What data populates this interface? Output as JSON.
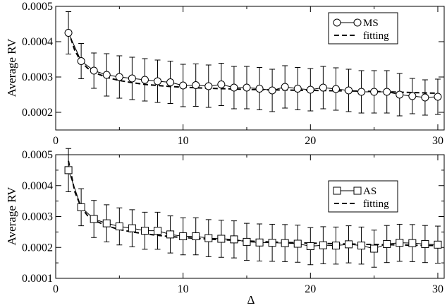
{
  "xlabel": "Δ",
  "colors": {
    "ink": "#000000",
    "background": "#ffffff"
  },
  "chart_data": [
    {
      "type": "line",
      "panel": "top",
      "ylabel": "Average RV",
      "xlim": [
        0,
        30.5
      ],
      "ylim": [
        0.00015,
        0.0005
      ],
      "x_ticks": [
        0,
        10,
        20,
        30
      ],
      "x_tick_labels": [
        "0",
        "10",
        "20",
        "30"
      ],
      "y_ticks": [
        0.0002,
        0.0003,
        0.0004,
        0.0005
      ],
      "y_tick_labels": [
        "0.0002",
        "0.0003",
        "0.0004",
        "0.0005"
      ],
      "legend_position": "top-right",
      "series": [
        {
          "name": "MS",
          "marker": "circle",
          "line": "solid",
          "x": [
            1,
            2,
            3,
            4,
            5,
            6,
            7,
            8,
            9,
            10,
            11,
            12,
            13,
            14,
            15,
            16,
            17,
            18,
            19,
            20,
            21,
            22,
            23,
            24,
            25,
            26,
            27,
            28,
            29,
            30
          ],
          "values": [
            0.000425,
            0.000345,
            0.000318,
            0.000306,
            0.0003,
            0.000296,
            0.000292,
            0.000288,
            0.000285,
            0.000276,
            0.000277,
            0.000274,
            0.000279,
            0.00027,
            0.00027,
            0.000267,
            0.000262,
            0.000272,
            0.000267,
            0.000264,
            0.00027,
            0.000266,
            0.000262,
            0.000258,
            0.000258,
            0.000258,
            0.00025,
            0.000246,
            0.000242,
            0.000244
          ],
          "error": [
            6e-05,
            5e-05,
            5e-05,
            6e-05,
            6e-05,
            6e-05,
            6e-05,
            6e-05,
            6e-05,
            6e-05,
            6e-05,
            6e-05,
            6e-05,
            6e-05,
            6e-05,
            6e-05,
            6e-05,
            6e-05,
            6e-05,
            6e-05,
            6e-05,
            6e-05,
            6e-05,
            6e-05,
            6e-05,
            6e-05,
            6e-05,
            5e-05,
            5e-05,
            5e-05
          ]
        },
        {
          "name": "fitting",
          "line": "dashed",
          "x": [
            1,
            1.5,
            2,
            2.5,
            3,
            4,
            5,
            6,
            7,
            8,
            9,
            10,
            12,
            14,
            16,
            18,
            20,
            22,
            24,
            26,
            28,
            30
          ],
          "values": [
            0.00043,
            0.000375,
            0.000343,
            0.000325,
            0.000313,
            0.000299,
            0.00029,
            0.000284,
            0.000279,
            0.000276,
            0.000273,
            0.000271,
            0.000268,
            0.000266,
            0.000264,
            0.000263,
            0.000262,
            0.000261,
            0.00026,
            0.000258,
            0.000256,
            0.000254
          ]
        }
      ]
    },
    {
      "type": "line",
      "panel": "bottom",
      "ylabel": "Average RV",
      "xlabel": "Δ",
      "xlim": [
        0,
        30.5
      ],
      "ylim": [
        0.0001,
        0.0005
      ],
      "x_ticks": [
        0,
        10,
        20,
        30
      ],
      "x_tick_labels": [
        "0",
        "10",
        "20",
        "30"
      ],
      "y_ticks": [
        0.0001,
        0.0002,
        0.0003,
        0.0004,
        0.0005
      ],
      "y_tick_labels": [
        "0.0001",
        "0.0002",
        "0.0003",
        "0.0004",
        "0.0005"
      ],
      "legend_position": "top-right",
      "series": [
        {
          "name": "AS",
          "marker": "square",
          "line": "solid",
          "x": [
            1,
            2,
            3,
            4,
            5,
            6,
            7,
            8,
            9,
            10,
            11,
            12,
            13,
            14,
            15,
            16,
            17,
            18,
            19,
            20,
            21,
            22,
            23,
            24,
            25,
            26,
            27,
            28,
            29,
            30
          ],
          "values": [
            0.00045,
            0.00033,
            0.000292,
            0.000278,
            0.000268,
            0.000262,
            0.000254,
            0.000254,
            0.000242,
            0.000236,
            0.000236,
            0.00023,
            0.000228,
            0.000226,
            0.000218,
            0.000216,
            0.000215,
            0.000214,
            0.000212,
            0.000204,
            0.000207,
            0.000206,
            0.00021,
            0.000206,
            0.000196,
            0.000211,
            0.000215,
            0.000214,
            0.000211,
            0.000209
          ],
          "error": [
            7e-05,
            6e-05,
            6e-05,
            6e-05,
            6e-05,
            6e-05,
            6e-05,
            6e-05,
            6e-05,
            6e-05,
            6e-05,
            6e-05,
            6e-05,
            6e-05,
            6e-05,
            6e-05,
            6e-05,
            6e-05,
            6e-05,
            6e-05,
            6e-05,
            6e-05,
            6e-05,
            6e-05,
            6e-05,
            6e-05,
            6e-05,
            6e-05,
            6e-05,
            6e-05
          ]
        },
        {
          "name": "fitting",
          "line": "dashed",
          "x": [
            1,
            1.5,
            2,
            2.5,
            3,
            4,
            5,
            6,
            7,
            8,
            9,
            10,
            12,
            14,
            16,
            18,
            20,
            22,
            24,
            26,
            28,
            30
          ],
          "values": [
            0.00048,
            0.00038,
            0.00033,
            0.000303,
            0.000288,
            0.00027,
            0.000258,
            0.00025,
            0.000244,
            0.000239,
            0.000235,
            0.000232,
            0.000227,
            0.000223,
            0.000219,
            0.000216,
            0.000214,
            0.000212,
            0.00021,
            0.000209,
            0.000207,
            0.000206
          ]
        }
      ]
    }
  ]
}
